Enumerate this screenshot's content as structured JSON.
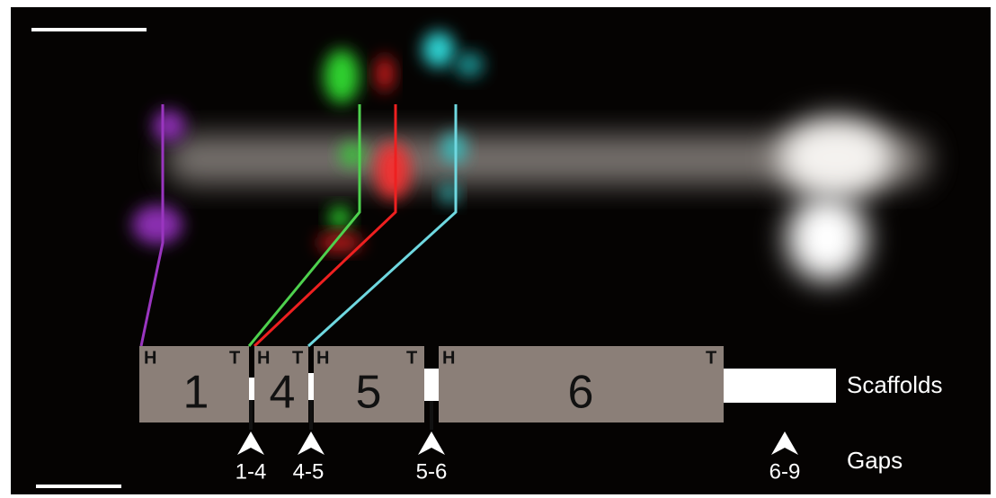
{
  "scaffolds": [
    {
      "label": "1",
      "head": "H",
      "tail": "T"
    },
    {
      "label": "4",
      "head": "H",
      "tail": "T"
    },
    {
      "label": "5",
      "head": "H",
      "tail": "T"
    },
    {
      "label": "6",
      "head": "H",
      "tail": "T"
    }
  ],
  "gaps": [
    "1-4",
    "4-5",
    "5-6",
    "6-9"
  ],
  "row_labels": {
    "scaffolds": "Scaffolds",
    "gaps": "Gaps"
  }
}
